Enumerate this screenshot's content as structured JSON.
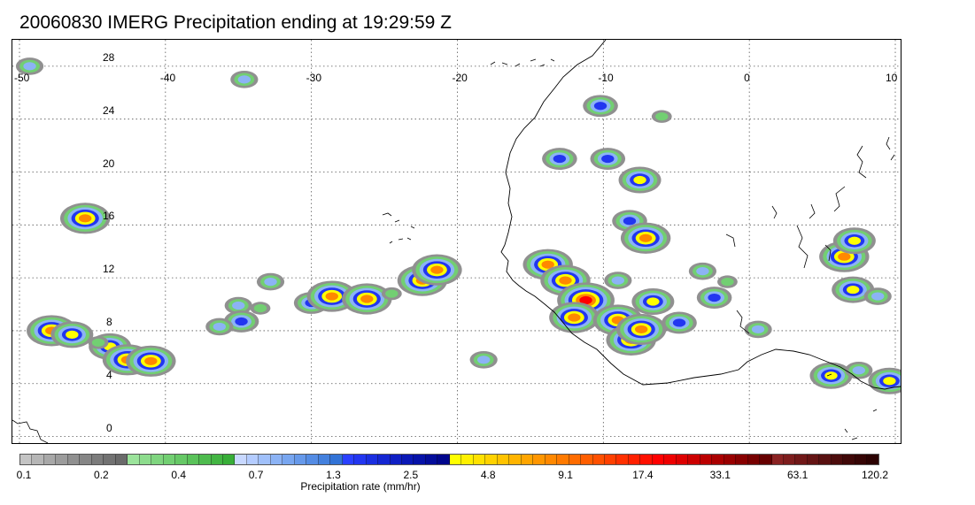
{
  "title": "20060830 IMERG Precipitation ending at 19:29:59 Z",
  "map": {
    "lon_labels": [
      "-50",
      "-40",
      "-30",
      "-20",
      "-10",
      "0",
      "10"
    ],
    "lat_labels": [
      "28",
      "24",
      "20",
      "16",
      "12",
      "8",
      "4",
      "0"
    ],
    "lon_range": [
      -50,
      10
    ],
    "lat_range": [
      -0.5,
      30
    ],
    "grid": "dotted"
  },
  "colorbar": {
    "title": "Precipitation rate (mm/hr)",
    "labels": [
      "0.1",
      "0.2",
      "0.4",
      "0.7",
      "1.3",
      "2.5",
      "4.8",
      "9.1",
      "17.4",
      "33.1",
      "63.1",
      "120.2"
    ],
    "colors": [
      "#c4c4c4",
      "#b6b6b6",
      "#a8a8a8",
      "#9c9c9c",
      "#909090",
      "#868686",
      "#7c7c7c",
      "#727272",
      "#6a6a6a",
      "#9be39b",
      "#8ddc8d",
      "#7fd57f",
      "#72cf72",
      "#66c866",
      "#5ac25a",
      "#4ebb4e",
      "#43b543",
      "#38ae38",
      "#c8d8ff",
      "#b4ccff",
      "#a0c0fa",
      "#8cb3f5",
      "#78a6f0",
      "#6699ea",
      "#548ce4",
      "#4380dd",
      "#3273d6",
      "#2a40ff",
      "#2236f0",
      "#1a2ee0",
      "#1426d2",
      "#0f1fc4",
      "#0a18b6",
      "#0612a8",
      "#030c9a",
      "#00068c",
      "#ffff00",
      "#fff000",
      "#ffe100",
      "#ffd200",
      "#ffc300",
      "#ffb400",
      "#ffa500",
      "#ff9600",
      "#ff8800",
      "#ff7a00",
      "#ff6c00",
      "#ff5e00",
      "#ff5000",
      "#ff4000",
      "#ff3000",
      "#ff2000",
      "#ff1000",
      "#ff0000",
      "#ee0000",
      "#dd0000",
      "#cc0000",
      "#bb0000",
      "#aa0000",
      "#990000",
      "#880000",
      "#770000",
      "#660000",
      "#8a2222",
      "#7d1d1d",
      "#701818",
      "#641414",
      "#581010",
      "#4c0c0c",
      "#400808",
      "#360505",
      "#2c0202"
    ]
  },
  "precip_cells": [
    {
      "lon": -35.0,
      "lat": 9.9,
      "rate": 1.3
    },
    {
      "lon": -33.5,
      "lat": 9.7,
      "rate": 0.4
    },
    {
      "lon": -30.0,
      "lat": 10.1,
      "rate": 2.5
    },
    {
      "lon": -28.6,
      "lat": 10.6,
      "rate": 9.1
    },
    {
      "lon": -26.2,
      "lat": 10.4,
      "rate": 9.1
    },
    {
      "lon": -24.5,
      "lat": 10.8,
      "rate": 0.4
    },
    {
      "lon": -22.4,
      "lat": 11.8,
      "rate": 17.4
    },
    {
      "lon": -21.4,
      "lat": 12.6,
      "rate": 9.1
    },
    {
      "lon": -32.8,
      "lat": 11.7,
      "rate": 1.3
    },
    {
      "lon": -47.8,
      "lat": 8.0,
      "rate": 9.1
    },
    {
      "lon": -46.4,
      "lat": 7.7,
      "rate": 4.8
    },
    {
      "lon": -43.8,
      "lat": 6.8,
      "rate": 4.8
    },
    {
      "lon": -42.6,
      "lat": 5.8,
      "rate": 17.4
    },
    {
      "lon": -41.0,
      "lat": 5.7,
      "rate": 9.1
    },
    {
      "lon": -44.6,
      "lat": 7.1,
      "rate": 0.4
    },
    {
      "lon": -45.5,
      "lat": 16.5,
      "rate": 17.4
    },
    {
      "lon": -34.8,
      "lat": 8.7,
      "rate": 2.5
    },
    {
      "lon": -13.8,
      "lat": 13.0,
      "rate": 9.1
    },
    {
      "lon": -12.6,
      "lat": 11.8,
      "rate": 17.4
    },
    {
      "lon": -11.2,
      "lat": 10.3,
      "rate": 33.1
    },
    {
      "lon": -12.0,
      "lat": 9.0,
      "rate": 17.4
    },
    {
      "lon": -9.0,
      "lat": 8.8,
      "rate": 9.1
    },
    {
      "lon": -8.1,
      "lat": 7.3,
      "rate": 9.1
    },
    {
      "lon": -6.6,
      "lat": 10.2,
      "rate": 4.8
    },
    {
      "lon": -7.4,
      "lat": 8.1,
      "rate": 9.1
    },
    {
      "lon": -4.8,
      "lat": 8.6,
      "rate": 2.5
    },
    {
      "lon": -2.4,
      "lat": 10.5,
      "rate": 2.5
    },
    {
      "lon": -8.2,
      "lat": 16.3,
      "rate": 2.5
    },
    {
      "lon": -7.5,
      "lat": 19.4,
      "rate": 4.8
    },
    {
      "lon": -7.1,
      "lat": 15.0,
      "rate": 9.1
    },
    {
      "lon": -13.0,
      "lat": 21.0,
      "rate": 2.5
    },
    {
      "lon": -9.7,
      "lat": 21.0,
      "rate": 2.5
    },
    {
      "lon": -10.2,
      "lat": 25.0,
      "rate": 2.5
    },
    {
      "lon": -6.0,
      "lat": 24.2,
      "rate": 0.4
    },
    {
      "lon": -34.6,
      "lat": 27.0,
      "rate": 1.3
    },
    {
      "lon": -49.3,
      "lat": 28.0,
      "rate": 1.3
    },
    {
      "lon": 6.5,
      "lat": 13.6,
      "rate": 9.1
    },
    {
      "lon": 7.2,
      "lat": 14.8,
      "rate": 4.8
    },
    {
      "lon": 7.1,
      "lat": 11.1,
      "rate": 4.8
    },
    {
      "lon": 8.8,
      "lat": 10.6,
      "rate": 1.3
    },
    {
      "lon": 0.6,
      "lat": 8.1,
      "rate": 1.3
    },
    {
      "lon": 5.6,
      "lat": 4.6,
      "rate": 4.8
    },
    {
      "lon": 7.5,
      "lat": 5.0,
      "rate": 1.3
    },
    {
      "lon": 9.6,
      "lat": 4.2,
      "rate": 4.8
    },
    {
      "lon": -9.0,
      "lat": 11.8,
      "rate": 1.3
    },
    {
      "lon": -3.2,
      "lat": 12.5,
      "rate": 1.3
    },
    {
      "lon": -1.5,
      "lat": 11.7,
      "rate": 0.4
    },
    {
      "lon": -36.3,
      "lat": 8.3,
      "rate": 1.3
    },
    {
      "lon": -18.2,
      "lat": 5.8,
      "rate": 1.3
    }
  ]
}
